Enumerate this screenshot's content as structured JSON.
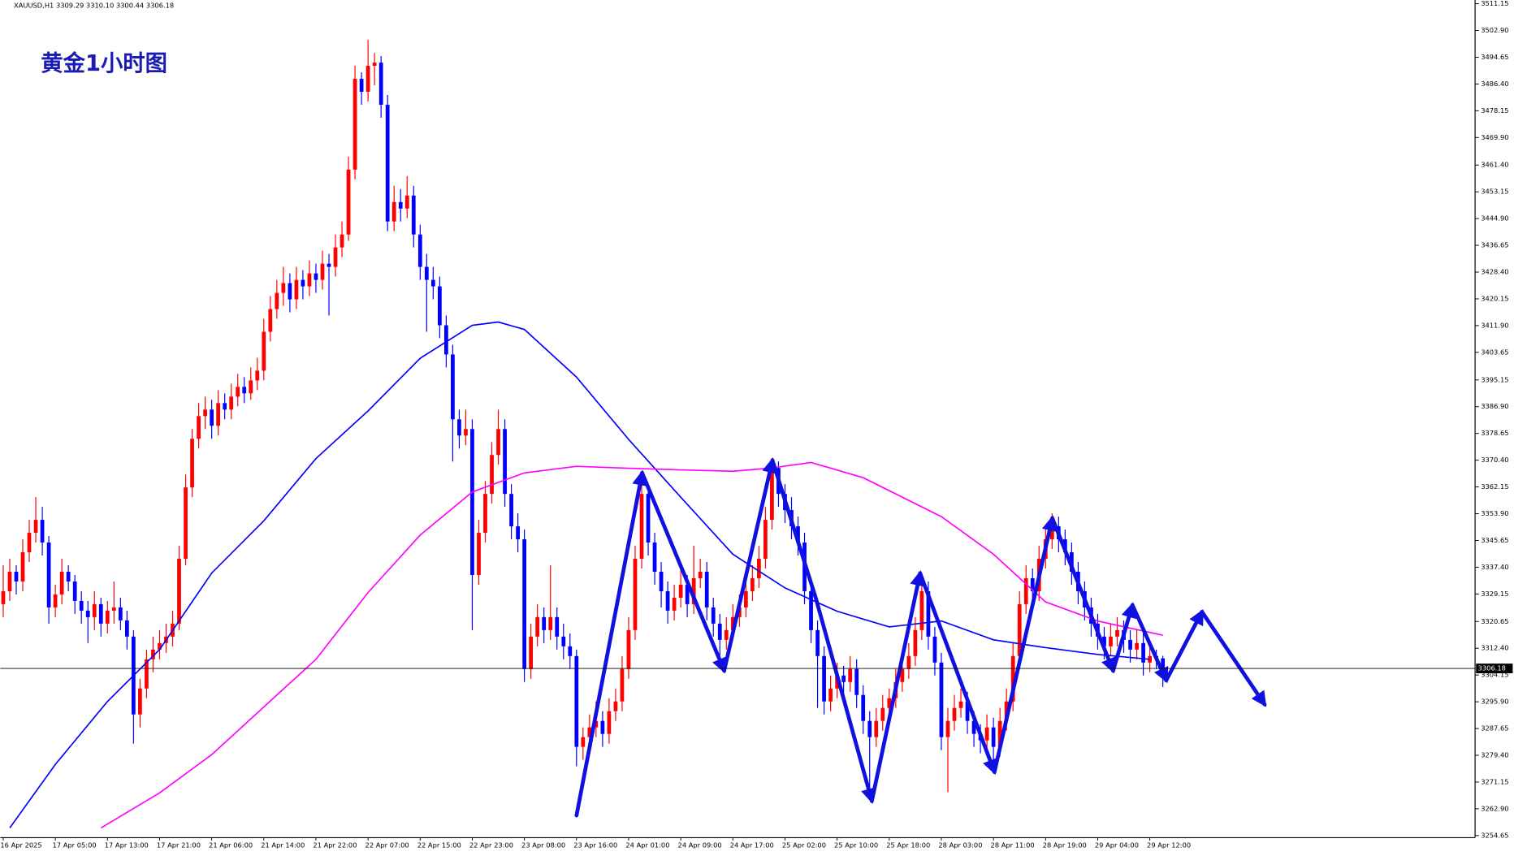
{
  "chart_data": {
    "type": "candlestick",
    "header": "XAUUSD,H1 3309.29 3310.10 3300.44 3306.18",
    "title": "黄金1小时图",
    "up_color": "#ff0000",
    "down_color": "#0000ff",
    "categories": [
      "16 Apr 2025",
      null,
      null,
      null,
      null,
      null,
      null,
      null,
      "17 Apr 05:00",
      null,
      null,
      null,
      null,
      null,
      null,
      null,
      "17 Apr 13:00",
      null,
      null,
      null,
      null,
      null,
      null,
      null,
      "17 Apr 21:00",
      null,
      null,
      null,
      null,
      null,
      null,
      null,
      "21 Apr 06:00",
      null,
      null,
      null,
      null,
      null,
      null,
      null,
      "21 Apr 14:00",
      null,
      null,
      null,
      null,
      null,
      null,
      null,
      "21 Apr 22:00",
      null,
      null,
      null,
      null,
      null,
      null,
      null,
      "22 Apr 07:00",
      null,
      null,
      null,
      null,
      null,
      null,
      null,
      "22 Apr 15:00",
      null,
      null,
      null,
      null,
      null,
      null,
      null,
      "22 Apr 23:00",
      null,
      null,
      null,
      null,
      null,
      null,
      null,
      "23 Apr 08:00",
      null,
      null,
      null,
      null,
      null,
      null,
      null,
      "23 Apr 16:00",
      null,
      null,
      null,
      null,
      null,
      null,
      null,
      "24 Apr 01:00",
      null,
      null,
      null,
      null,
      null,
      null,
      null,
      "24 Apr 09:00",
      null,
      null,
      null,
      null,
      null,
      null,
      null,
      "24 Apr 17:00",
      null,
      null,
      null,
      null,
      null,
      null,
      null,
      "25 Apr 02:00",
      null,
      null,
      null,
      null,
      null,
      null,
      null,
      "25 Apr 10:00",
      null,
      null,
      null,
      null,
      null,
      null,
      null,
      "25 Apr 18:00",
      null,
      null,
      null,
      null,
      null,
      null,
      null,
      "28 Apr 03:00",
      null,
      null,
      null,
      null,
      null,
      null,
      null,
      "28 Apr 11:00",
      null,
      null,
      null,
      null,
      null,
      null,
      null,
      "28 Apr 19:00",
      null,
      null,
      null,
      null,
      null,
      null,
      null,
      "29 Apr 04:00",
      null,
      null,
      null,
      null,
      null,
      null,
      null,
      "29 Apr 12:00",
      null,
      null
    ],
    "ohlc": [
      [
        3326,
        3338,
        3322,
        3330
      ],
      [
        3330,
        3340,
        3327,
        3336
      ],
      [
        3336,
        3338,
        3329,
        3333
      ],
      [
        3333,
        3346,
        3330,
        3342
      ],
      [
        3342,
        3352,
        3339,
        3348
      ],
      [
        3348,
        3359,
        3345,
        3352
      ],
      [
        3352,
        3356,
        3341,
        3345
      ],
      [
        3345,
        3347,
        3320,
        3325
      ],
      [
        3325,
        3332,
        3322,
        3329
      ],
      [
        3329,
        3340,
        3326,
        3336
      ],
      [
        3336,
        3338,
        3330,
        3333
      ],
      [
        3333,
        3335,
        3323,
        3327
      ],
      [
        3327,
        3330,
        3320,
        3324
      ],
      [
        3324,
        3327,
        3314,
        3322
      ],
      [
        3322,
        3330,
        3318,
        3326
      ],
      [
        3326,
        3328,
        3316,
        3320
      ],
      [
        3320,
        3327,
        3317,
        3324
      ],
      [
        3324,
        3333,
        3320,
        3325
      ],
      [
        3325,
        3328,
        3318,
        3321
      ],
      [
        3321,
        3324,
        3312,
        3316
      ],
      [
        3316,
        3318,
        3283,
        3292
      ],
      [
        3292,
        3303,
        3288,
        3300
      ],
      [
        3300,
        3312,
        3297,
        3309
      ],
      [
        3309,
        3316,
        3305,
        3312
      ],
      [
        3312,
        3318,
        3309,
        3314
      ],
      [
        3314,
        3320,
        3311,
        3316
      ],
      [
        3316,
        3324,
        3313,
        3320
      ],
      [
        3320,
        3344,
        3318,
        3340
      ],
      [
        3340,
        3366,
        3338,
        3362
      ],
      [
        3362,
        3380,
        3359,
        3377
      ],
      [
        3377,
        3388,
        3374,
        3384
      ],
      [
        3384,
        3390,
        3380,
        3386
      ],
      [
        3386,
        3389,
        3377,
        3381
      ],
      [
        3381,
        3392,
        3378,
        3388
      ],
      [
        3388,
        3391,
        3383,
        3386
      ],
      [
        3386,
        3394,
        3383,
        3390
      ],
      [
        3390,
        3397,
        3387,
        3393
      ],
      [
        3393,
        3396,
        3388,
        3391
      ],
      [
        3391,
        3399,
        3389,
        3395
      ],
      [
        3395,
        3402,
        3392,
        3398
      ],
      [
        3398,
        3414,
        3395,
        3410
      ],
      [
        3410,
        3421,
        3407,
        3417
      ],
      [
        3417,
        3426,
        3414,
        3422
      ],
      [
        3422,
        3430,
        3418,
        3425
      ],
      [
        3425,
        3428,
        3416,
        3420
      ],
      [
        3420,
        3430,
        3417,
        3426
      ],
      [
        3426,
        3429,
        3420,
        3424
      ],
      [
        3424,
        3432,
        3421,
        3428
      ],
      [
        3428,
        3431,
        3422,
        3426
      ],
      [
        3426,
        3435,
        3423,
        3431
      ],
      [
        3431,
        3434,
        3415,
        3430
      ],
      [
        3430,
        3440,
        3427,
        3436
      ],
      [
        3436,
        3444,
        3433,
        3440
      ],
      [
        3440,
        3464,
        3438,
        3460
      ],
      [
        3460,
        3492,
        3457,
        3488
      ],
      [
        3488,
        3490,
        3480,
        3484
      ],
      [
        3484,
        3500,
        3481,
        3492
      ],
      [
        3492,
        3496,
        3486,
        3493
      ],
      [
        3493,
        3495,
        3476,
        3480
      ],
      [
        3480,
        3483,
        3441,
        3444
      ],
      [
        3444,
        3455,
        3441,
        3450
      ],
      [
        3450,
        3454,
        3444,
        3448
      ],
      [
        3448,
        3458,
        3445,
        3452
      ],
      [
        3452,
        3455,
        3436,
        3440
      ],
      [
        3440,
        3443,
        3426,
        3430
      ],
      [
        3430,
        3434,
        3410,
        3426
      ],
      [
        3426,
        3430,
        3420,
        3424
      ],
      [
        3424,
        3427,
        3408,
        3412
      ],
      [
        3412,
        3415,
        3399,
        3403
      ],
      [
        3403,
        3406,
        3370,
        3383
      ],
      [
        3383,
        3386,
        3374,
        3378
      ],
      [
        3378,
        3386,
        3375,
        3380
      ],
      [
        3380,
        3383,
        3318,
        3335
      ],
      [
        3335,
        3352,
        3332,
        3348
      ],
      [
        3348,
        3364,
        3345,
        3360
      ],
      [
        3360,
        3376,
        3357,
        3372
      ],
      [
        3372,
        3386,
        3369,
        3380
      ],
      [
        3380,
        3383,
        3356,
        3360
      ],
      [
        3360,
        3363,
        3346,
        3350
      ],
      [
        3350,
        3354,
        3342,
        3346
      ],
      [
        3346,
        3349,
        3302,
        3306
      ],
      [
        3306,
        3320,
        3303,
        3316
      ],
      [
        3316,
        3326,
        3313,
        3322
      ],
      [
        3322,
        3325,
        3314,
        3318
      ],
      [
        3318,
        3338,
        3315,
        3322
      ],
      [
        3322,
        3325,
        3312,
        3316
      ],
      [
        3316,
        3320,
        3309,
        3313
      ],
      [
        3313,
        3317,
        3306,
        3310
      ],
      [
        3310,
        3312,
        3276,
        3282
      ],
      [
        3282,
        3288,
        3278,
        3285
      ],
      [
        3285,
        3292,
        3281,
        3288
      ],
      [
        3288,
        3296,
        3285,
        3290
      ],
      [
        3290,
        3293,
        3282,
        3286
      ],
      [
        3286,
        3297,
        3283,
        3293
      ],
      [
        3293,
        3300,
        3290,
        3296
      ],
      [
        3296,
        3310,
        3293,
        3306
      ],
      [
        3306,
        3322,
        3303,
        3318
      ],
      [
        3318,
        3344,
        3315,
        3340
      ],
      [
        3340,
        3366,
        3337,
        3360
      ],
      [
        3360,
        3363,
        3341,
        3345
      ],
      [
        3345,
        3348,
        3332,
        3336
      ],
      [
        3336,
        3339,
        3325,
        3330
      ],
      [
        3330,
        3333,
        3320,
        3324
      ],
      [
        3324,
        3332,
        3321,
        3328
      ],
      [
        3328,
        3337,
        3325,
        3332
      ],
      [
        3332,
        3335,
        3322,
        3326
      ],
      [
        3326,
        3344,
        3323,
        3334
      ],
      [
        3334,
        3340,
        3331,
        3336
      ],
      [
        3336,
        3339,
        3321,
        3325
      ],
      [
        3325,
        3328,
        3316,
        3320
      ],
      [
        3320,
        3323,
        3310,
        3315
      ],
      [
        3315,
        3322,
        3312,
        3318
      ],
      [
        3318,
        3326,
        3315,
        3322
      ],
      [
        3322,
        3329,
        3319,
        3325
      ],
      [
        3325,
        3334,
        3322,
        3330
      ],
      [
        3330,
        3338,
        3327,
        3334
      ],
      [
        3334,
        3344,
        3331,
        3340
      ],
      [
        3340,
        3356,
        3337,
        3352
      ],
      [
        3352,
        3371,
        3349,
        3368
      ],
      [
        3368,
        3370,
        3356,
        3360
      ],
      [
        3360,
        3363,
        3351,
        3355
      ],
      [
        3355,
        3359,
        3346,
        3350
      ],
      [
        3350,
        3353,
        3341,
        3345
      ],
      [
        3345,
        3348,
        3326,
        3330
      ],
      [
        3330,
        3333,
        3314,
        3318
      ],
      [
        3318,
        3321,
        3294,
        3310
      ],
      [
        3310,
        3313,
        3292,
        3296
      ],
      [
        3296,
        3304,
        3293,
        3300
      ],
      [
        3300,
        3308,
        3297,
        3304
      ],
      [
        3304,
        3307,
        3298,
        3302
      ],
      [
        3302,
        3310,
        3299,
        3306
      ],
      [
        3306,
        3309,
        3294,
        3298
      ],
      [
        3298,
        3301,
        3286,
        3290
      ],
      [
        3290,
        3293,
        3269,
        3285
      ],
      [
        3285,
        3294,
        3282,
        3290
      ],
      [
        3290,
        3298,
        3287,
        3294
      ],
      [
        3294,
        3300,
        3291,
        3297
      ],
      [
        3297,
        3306,
        3294,
        3302
      ],
      [
        3302,
        3310,
        3299,
        3306
      ],
      [
        3306,
        3314,
        3303,
        3310
      ],
      [
        3310,
        3322,
        3307,
        3318
      ],
      [
        3318,
        3334,
        3315,
        3330
      ],
      [
        3330,
        3333,
        3312,
        3316
      ],
      [
        3316,
        3319,
        3304,
        3308
      ],
      [
        3308,
        3311,
        3281,
        3285
      ],
      [
        3285,
        3294,
        3268,
        3290
      ],
      [
        3290,
        3298,
        3287,
        3294
      ],
      [
        3294,
        3300,
        3291,
        3296
      ],
      [
        3296,
        3299,
        3286,
        3290
      ],
      [
        3290,
        3293,
        3282,
        3286
      ],
      [
        3286,
        3289,
        3280,
        3284
      ],
      [
        3284,
        3292,
        3281,
        3288
      ],
      [
        3288,
        3291,
        3278,
        3282
      ],
      [
        3282,
        3294,
        3279,
        3290
      ],
      [
        3290,
        3300,
        3287,
        3296
      ],
      [
        3296,
        3314,
        3293,
        3310
      ],
      [
        3310,
        3330,
        3307,
        3326
      ],
      [
        3326,
        3338,
        3323,
        3334
      ],
      [
        3334,
        3337,
        3326,
        3330
      ],
      [
        3330,
        3344,
        3327,
        3340
      ],
      [
        3340,
        3350,
        3337,
        3346
      ],
      [
        3346,
        3354,
        3343,
        3350
      ],
      [
        3350,
        3353,
        3342,
        3346
      ],
      [
        3346,
        3349,
        3338,
        3342
      ],
      [
        3342,
        3345,
        3332,
        3336
      ],
      [
        3336,
        3339,
        3326,
        3330
      ],
      [
        3330,
        3333,
        3321,
        3325
      ],
      [
        3325,
        3328,
        3316,
        3320
      ],
      [
        3320,
        3323,
        3312,
        3316
      ],
      [
        3316,
        3319,
        3309,
        3313
      ],
      [
        3313,
        3320,
        3310,
        3316
      ],
      [
        3316,
        3322,
        3313,
        3318
      ],
      [
        3318,
        3321,
        3311,
        3315
      ],
      [
        3315,
        3318,
        3308,
        3312
      ],
      [
        3312,
        3318,
        3309,
        3314
      ],
      [
        3314,
        3317,
        3304,
        3308
      ],
      [
        3308,
        3313,
        3305,
        3310
      ],
      [
        3310,
        3312,
        3306,
        3309.29
      ],
      [
        3309.29,
        3310.1,
        3300.44,
        3306.18
      ]
    ],
    "indicators": [
      {
        "color": "#0000ff",
        "x": [
          1,
          8,
          16,
          24,
          32,
          40,
          48,
          56,
          64,
          72,
          76,
          80,
          88,
          96,
          104,
          112,
          120,
          128,
          136,
          144,
          152,
          160,
          168,
          176
        ],
        "values": [
          3257,
          3276.6,
          3296,
          3312,
          3335.6,
          3351.7,
          3370.9,
          3385.6,
          3401.8,
          3412,
          3413,
          3410.7,
          3396,
          3376.8,
          3359,
          3341.4,
          3331,
          3323.8,
          3319,
          3320.8,
          3315,
          3312.6,
          3310.5,
          3309
        ]
      },
      {
        "color": "#ff00ff",
        "x": [
          15,
          24,
          32,
          40,
          48,
          56,
          64,
          72,
          80,
          88,
          96,
          104,
          112,
          118,
          124,
          132,
          144,
          152,
          160,
          168,
          178
        ],
        "values": [
          3257,
          3267.8,
          3279.6,
          3294.3,
          3309,
          3329.6,
          3347.3,
          3360.6,
          3366.5,
          3368.5,
          3367.9,
          3367.4,
          3367,
          3368,
          3369.7,
          3365,
          3353,
          3341.4,
          3326.7,
          3320.8,
          3316.4
        ]
      }
    ],
    "current_price": 3306.18,
    "ylim": [
      3254.0,
      3512.3
    ],
    "yticks": [
      3511.15,
      {
        "value": 3502.9,
        "label": "3502.90"
      },
      3494.65,
      {
        "value": 3486.4,
        "label": "3486.40"
      },
      3478.15,
      {
        "value": 3469.9,
        "label": "3469.90"
      },
      {
        "value": 3461.4,
        "label": "3461.40"
      },
      3453.15,
      {
        "value": 3444.9,
        "label": "3444.90"
      },
      3436.65,
      {
        "value": 3428.4,
        "label": "3428.40"
      },
      3420.15,
      {
        "value": 3411.9,
        "label": "3411.90"
      },
      3403.65,
      3395.15,
      {
        "value": 3386.9,
        "label": "3386.90"
      },
      3378.65,
      {
        "value": 3370.4,
        "label": "3370.40"
      },
      3362.15,
      {
        "value": 3353.9,
        "label": "3353.90"
      },
      3345.65,
      {
        "value": 3337.4,
        "label": "3337.40"
      },
      3329.15,
      3320.65,
      {
        "value": 3312.4,
        "label": "3312.40"
      },
      3304.15,
      {
        "value": 3295.9,
        "label": "3295.90"
      },
      3287.65,
      {
        "value": 3279.4,
        "label": "3279.40"
      },
      3271.15,
      {
        "value": 3262.9,
        "label": "3262.90"
      },
      3254.65
    ]
  }
}
